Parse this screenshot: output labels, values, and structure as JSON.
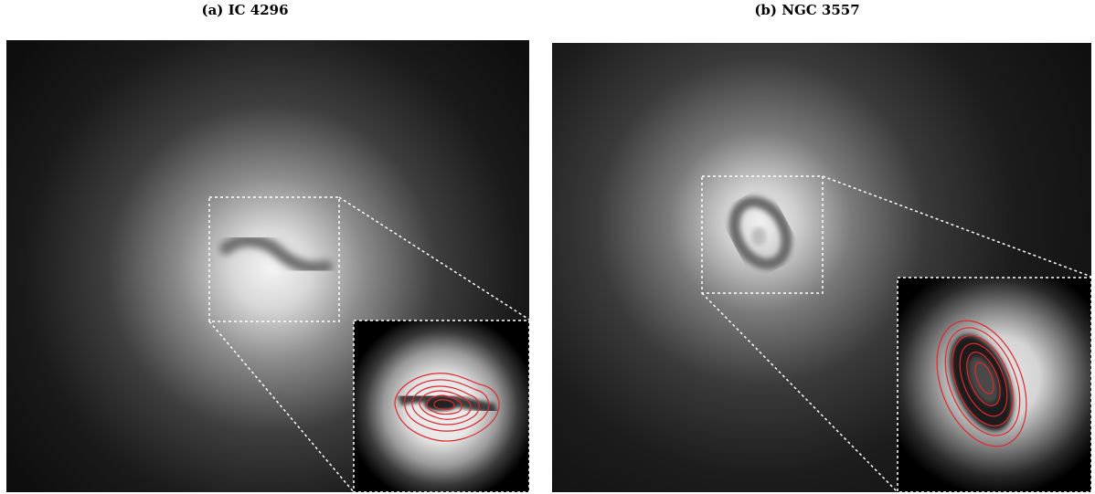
{
  "figure": {
    "panels": [
      {
        "caption": "(a) IC 4296",
        "contour_color": "#e0282e",
        "zoom_box_style": "white dashed"
      },
      {
        "caption": "(b) NGC 3557",
        "contour_color": "#e0282e",
        "zoom_box_style": "white dashed"
      }
    ]
  }
}
